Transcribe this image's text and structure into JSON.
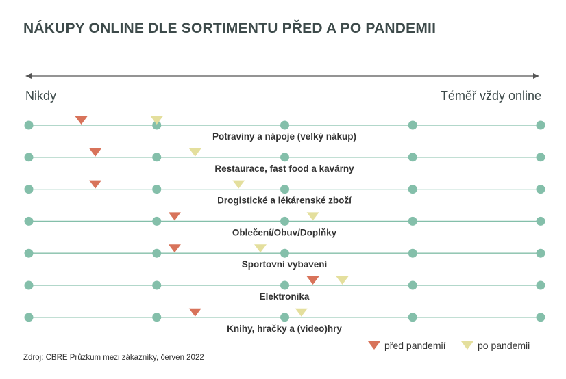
{
  "title": "NÁKUPY ONLINE DLE SORTIMENTU PŘED A PO PANDEMII",
  "scale": {
    "left_label": "Nikdy",
    "right_label": "Téměř vždy online"
  },
  "source": "Zdroj: CBRE Průzkum mezi zákazníky, červen 2022",
  "colors": {
    "before": "#d8735a",
    "after": "#e4df9d",
    "dot": "#84bfaa",
    "line": "#84bfaa",
    "axis": "#555555"
  },
  "chart_data": {
    "type": "scatter",
    "scale_points": [
      0,
      1,
      2,
      3,
      4
    ],
    "xlim": [
      0,
      4
    ],
    "categories": [
      "Potraviny a nápoje (velký nákup)",
      "Restaurace, fast food a kavárny",
      "Drogistické a lékárenské zboží",
      "Oblečení/Obuv/Doplňky",
      "Sportovní vybavení",
      "Elektronika",
      "Knihy, hračky a (video)hry"
    ],
    "series": [
      {
        "name": "před pandemií",
        "values": [
          0.41,
          0.52,
          0.52,
          1.14,
          1.14,
          2.22,
          1.3
        ]
      },
      {
        "name": "po pandemii",
        "values": [
          1.0,
          1.3,
          1.64,
          2.22,
          1.81,
          2.45,
          2.13
        ]
      }
    ]
  }
}
